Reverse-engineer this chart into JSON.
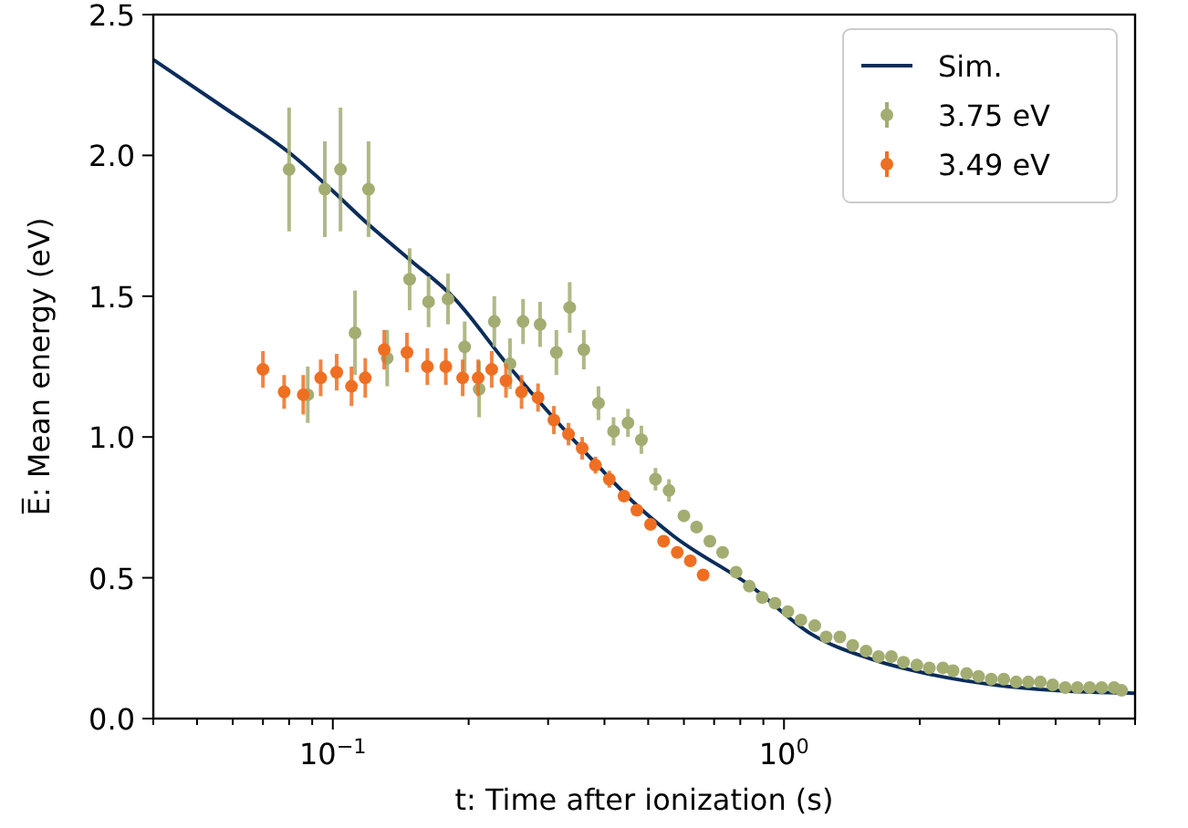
{
  "chart_data": {
    "type": "line",
    "xlabel": "t: Time after ionization (s)",
    "ylabel": "E̅: Mean energy (eV)",
    "log": "x",
    "xlim": [
      0.04,
      6
    ],
    "ylim": [
      0,
      2.5
    ],
    "xticks": [
      {
        "value": 0.04,
        "label": null
      },
      {
        "value": 0.05,
        "label": null
      },
      {
        "value": 0.06,
        "label": null
      },
      {
        "value": 0.07,
        "label": null
      },
      {
        "value": 0.08,
        "label": null
      },
      {
        "value": 0.09,
        "label": null
      },
      {
        "value": 0.1,
        "label": "10$^{−1}$"
      },
      {
        "value": 0.2,
        "label": null
      },
      {
        "value": 0.3,
        "label": null
      },
      {
        "value": 0.4,
        "label": null
      },
      {
        "value": 0.5,
        "label": null
      },
      {
        "value": 0.6,
        "label": null
      },
      {
        "value": 0.7,
        "label": null
      },
      {
        "value": 0.8,
        "label": null
      },
      {
        "value": 0.9,
        "label": null
      },
      {
        "value": 1,
        "label": "10$^{0}$"
      },
      {
        "value": 2,
        "label": null
      },
      {
        "value": 3,
        "label": null
      },
      {
        "value": 4,
        "label": null
      },
      {
        "value": 5,
        "label": null
      },
      {
        "value": 6,
        "label": null
      }
    ],
    "yticks": [
      {
        "value": 0,
        "label": "0.0"
      },
      {
        "value": 0.5,
        "label": "0.5"
      },
      {
        "value": 1,
        "label": "1.0"
      },
      {
        "value": 1.5,
        "label": "1.5"
      },
      {
        "value": 2,
        "label": "2.0"
      },
      {
        "value": 2.5,
        "label": "2.5"
      }
    ],
    "grid": false,
    "legend": "top right",
    "series": [
      {
        "name": "Sim.",
        "color": "#0b2d5b",
        "line_style": "solid",
        "x": [
          0.04,
          0.0586,
          0.08,
          0.099,
          0.119,
          0.148,
          0.184,
          0.243,
          0.391,
          0.47,
          0.567,
          0.845,
          1.15,
          1.57,
          2.14,
          2.92,
          3.97,
          6
        ],
        "values": [
          2.34,
          2.16,
          2.01,
          1.88,
          1.76,
          1.63,
          1.5,
          1.26,
          0.89,
          0.76,
          0.65,
          0.47,
          0.3,
          0.21,
          0.155,
          0.12,
          0.1,
          0.09
        ]
      },
      {
        "name": "3.75 eV",
        "type": "scatter",
        "marker": "circle",
        "color": "#a3ad72",
        "x": [
          0.08,
          0.088,
          0.096,
          0.104,
          0.112,
          0.12,
          0.132,
          0.148,
          0.163,
          0.18,
          0.196,
          0.211,
          0.228,
          0.247,
          0.264,
          0.288,
          0.313,
          0.335,
          0.36,
          0.388,
          0.419,
          0.451,
          0.483,
          0.519,
          0.556,
          0.6,
          0.64,
          0.685,
          0.731,
          0.783,
          0.838,
          0.895,
          0.955,
          1.02,
          1.09,
          1.17,
          1.24,
          1.33,
          1.42,
          1.52,
          1.62,
          1.73,
          1.84,
          1.97,
          2.1,
          2.25,
          2.37,
          2.54,
          2.7,
          2.88,
          3.07,
          3.27,
          3.48,
          3.7,
          3.94,
          4.2,
          4.47,
          4.76,
          5.06,
          5.39,
          5.6
        ],
        "values": [
          1.95,
          1.15,
          1.88,
          1.95,
          1.37,
          1.88,
          1.28,
          1.56,
          1.48,
          1.49,
          1.32,
          1.17,
          1.41,
          1.26,
          1.41,
          1.4,
          1.3,
          1.46,
          1.31,
          1.12,
          1.02,
          1.05,
          0.99,
          0.85,
          0.81,
          0.72,
          0.68,
          0.63,
          0.59,
          0.52,
          0.47,
          0.43,
          0.41,
          0.38,
          0.35,
          0.33,
          0.29,
          0.29,
          0.26,
          0.24,
          0.22,
          0.22,
          0.2,
          0.19,
          0.18,
          0.18,
          0.17,
          0.16,
          0.15,
          0.14,
          0.14,
          0.13,
          0.13,
          0.13,
          0.12,
          0.11,
          0.11,
          0.11,
          0.11,
          0.11,
          0.1
        ],
        "errors": [
          0.22,
          0.1,
          0.17,
          0.22,
          0.15,
          0.17,
          0.1,
          0.11,
          0.09,
          0.09,
          0.09,
          0.1,
          0.09,
          0.09,
          0.08,
          0.08,
          0.08,
          0.09,
          0.07,
          0.06,
          0.05,
          0.05,
          0.05,
          0.04,
          0.04,
          null,
          null,
          null,
          null,
          null,
          null,
          null,
          null,
          null,
          null,
          null,
          null,
          null,
          null,
          null,
          null,
          null,
          null,
          null,
          null,
          null,
          null,
          null,
          null,
          null,
          null,
          null,
          null,
          null,
          null,
          null,
          null,
          null,
          null,
          null,
          null
        ]
      },
      {
        "name": "3.49 eV",
        "type": "scatter",
        "marker": "circle",
        "color": "#ef6f22",
        "x": [
          0.07,
          0.078,
          0.086,
          0.094,
          0.102,
          0.11,
          0.118,
          0.13,
          0.146,
          0.162,
          0.178,
          0.194,
          0.21,
          0.225,
          0.242,
          0.262,
          0.285,
          0.309,
          0.333,
          0.357,
          0.382,
          0.41,
          0.442,
          0.472,
          0.506,
          0.541,
          0.58,
          0.62,
          0.662
        ],
        "values": [
          1.24,
          1.16,
          1.15,
          1.21,
          1.23,
          1.18,
          1.21,
          1.31,
          1.3,
          1.25,
          1.25,
          1.21,
          1.21,
          1.24,
          1.2,
          1.16,
          1.14,
          1.06,
          1.01,
          0.96,
          0.9,
          0.85,
          0.79,
          0.74,
          0.69,
          0.63,
          0.59,
          0.56,
          0.51
        ],
        "errors": [
          0.065,
          0.06,
          0.07,
          0.065,
          0.065,
          0.07,
          0.07,
          0.07,
          0.07,
          0.065,
          0.065,
          0.065,
          0.065,
          0.065,
          0.06,
          0.06,
          0.05,
          0.05,
          0.04,
          0.04,
          0.03,
          0.03,
          null,
          null,
          null,
          null,
          null,
          null,
          null
        ]
      }
    ]
  }
}
